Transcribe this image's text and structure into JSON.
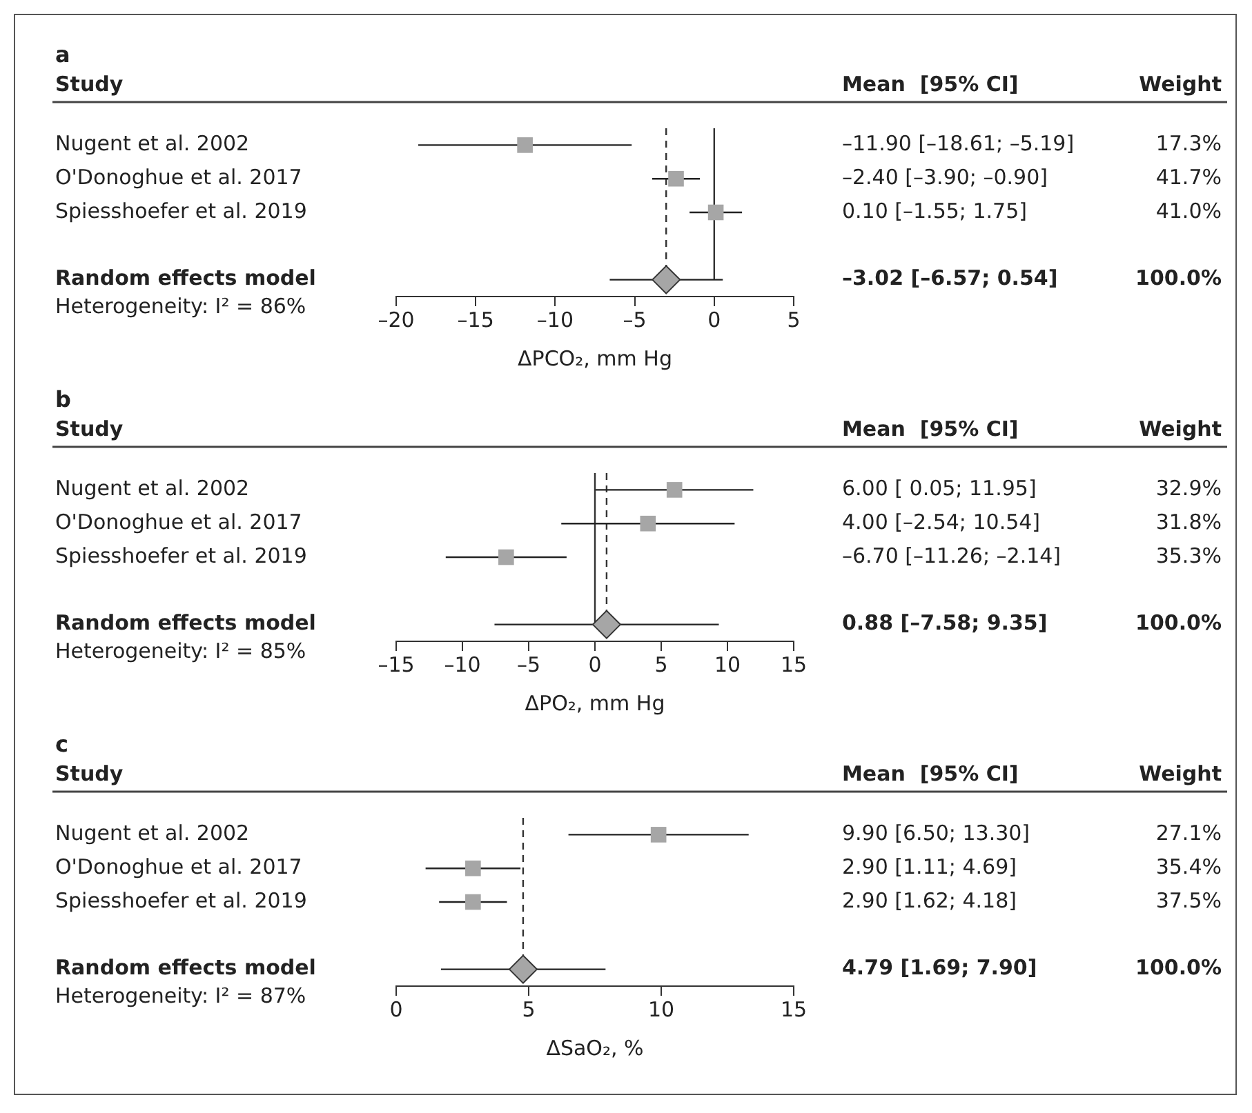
{
  "chart_data": [
    {
      "type": "scatter",
      "orientation": "horizontal",
      "title": "a",
      "ylabel": "Study",
      "xlabel": "ΔPCO₂, mm Hg",
      "categories": [
        "Nugent et al. 2002",
        "O'Donoghue et al. 2017",
        "Spiesshoefer et al. 2019",
        null,
        "Random effects model"
      ],
      "series": [
        {
          "marker": "square",
          "color": "#a6a6a6",
          "values": [
            -11.9,
            -2.4,
            0.1,
            null,
            null
          ],
          "errors": [
            [
              -18.61,
              -5.19
            ],
            [
              -3.9,
              -0.9
            ],
            [
              -1.55,
              1.75
            ],
            null,
            null
          ]
        },
        {
          "marker": "diamond",
          "color": "#a6a6a6",
          "values": [
            null,
            null,
            null,
            null,
            -3.02
          ],
          "errors": [
            null,
            null,
            null,
            null,
            [
              -6.57,
              0.54
            ]
          ]
        }
      ],
      "xlim": [
        -20,
        5
      ],
      "xticks": [
        {
          "value": -20,
          "label": "–20"
        },
        {
          "value": -15,
          "label": "–15"
        },
        {
          "value": -10,
          "label": "–10"
        },
        {
          "value": -5,
          "label": "–5"
        },
        0,
        5
      ],
      "grid": false,
      "legend": false,
      "ref_lines": [
        {
          "axis": "x",
          "value": 0,
          "line_style": "solid",
          "color": "#333333"
        },
        {
          "axis": "x",
          "value": -3.02,
          "line_style": "dashed",
          "color": "#333333"
        }
      ],
      "annotations": [
        "Mean  [95% CI]",
        "Weight",
        "Heterogeneity: I² = 86%",
        "–11.90 [–18.61; –5.19]",
        "–2.40 [–3.90; –0.90]",
        "0.10 [–1.55; 1.75]",
        "–3.02 [–6.57; 0.54]",
        "17.3%",
        "41.7%",
        "41.0%",
        "100.0%"
      ]
    },
    {
      "type": "scatter",
      "orientation": "horizontal",
      "title": "b",
      "ylabel": "Study",
      "xlabel": "ΔPO₂, mm Hg",
      "categories": [
        "Nugent et al. 2002",
        "O'Donoghue et al. 2017",
        "Spiesshoefer et al. 2019",
        null,
        "Random effects model"
      ],
      "series": [
        {
          "marker": "square",
          "color": "#a6a6a6",
          "values": [
            6.0,
            4.0,
            -6.7,
            null,
            null
          ],
          "errors": [
            [
              0.05,
              11.95
            ],
            [
              -2.54,
              10.54
            ],
            [
              -11.26,
              -2.14
            ],
            null,
            null
          ]
        },
        {
          "marker": "diamond",
          "color": "#a6a6a6",
          "values": [
            null,
            null,
            null,
            null,
            0.88
          ],
          "errors": [
            null,
            null,
            null,
            null,
            [
              -7.58,
              9.35
            ]
          ]
        }
      ],
      "xlim": [
        -15,
        15
      ],
      "xticks": [
        {
          "value": -15,
          "label": "–15"
        },
        {
          "value": -10,
          "label": "–10"
        },
        {
          "value": -5,
          "label": "–5"
        },
        0,
        5,
        10,
        15
      ],
      "grid": false,
      "legend": false,
      "ref_lines": [
        {
          "axis": "x",
          "value": 0,
          "line_style": "solid",
          "color": "#333333"
        },
        {
          "axis": "x",
          "value": 0.88,
          "line_style": "dashed",
          "color": "#333333"
        }
      ],
      "annotations": [
        "Mean  [95% CI]",
        "Weight",
        "Heterogeneity: I² = 85%",
        "6.00 [ 0.05; 11.95]",
        "4.00 [–2.54; 10.54]",
        "–6.70 [–11.26; –2.14]",
        "0.88 [–7.58; 9.35]",
        "32.9%",
        "31.8%",
        "35.3%",
        "100.0%"
      ]
    },
    {
      "type": "scatter",
      "orientation": "horizontal",
      "title": "c",
      "ylabel": "Study",
      "xlabel": "ΔSaO₂, %",
      "categories": [
        "Nugent et al. 2002",
        "O'Donoghue et al. 2017",
        "Spiesshoefer et al. 2019",
        null,
        "Random effects model"
      ],
      "series": [
        {
          "marker": "square",
          "color": "#a6a6a6",
          "values": [
            9.9,
            2.9,
            2.9,
            null,
            null
          ],
          "errors": [
            [
              6.5,
              13.3
            ],
            [
              1.11,
              4.69
            ],
            [
              1.62,
              4.18
            ],
            null,
            null
          ]
        },
        {
          "marker": "diamond",
          "color": "#a6a6a6",
          "values": [
            null,
            null,
            null,
            null,
            4.79
          ],
          "errors": [
            null,
            null,
            null,
            null,
            [
              1.69,
              7.9
            ]
          ]
        }
      ],
      "xlim": [
        0,
        15
      ],
      "xticks": [
        0,
        5,
        10,
        15
      ],
      "grid": false,
      "legend": false,
      "ref_lines": [
        {
          "axis": "x",
          "value": 4.79,
          "line_style": "dashed",
          "color": "#333333"
        }
      ],
      "annotations": [
        "Mean  [95% CI]",
        "Weight",
        "Heterogeneity: I² = 87%",
        "9.90 [6.50; 13.30]",
        "2.90 [1.11; 4.69]",
        "2.90 [1.62; 4.18]",
        "4.79 [1.69; 7.90]",
        "27.1%",
        "35.4%",
        "37.5%",
        "100.0%"
      ]
    }
  ]
}
